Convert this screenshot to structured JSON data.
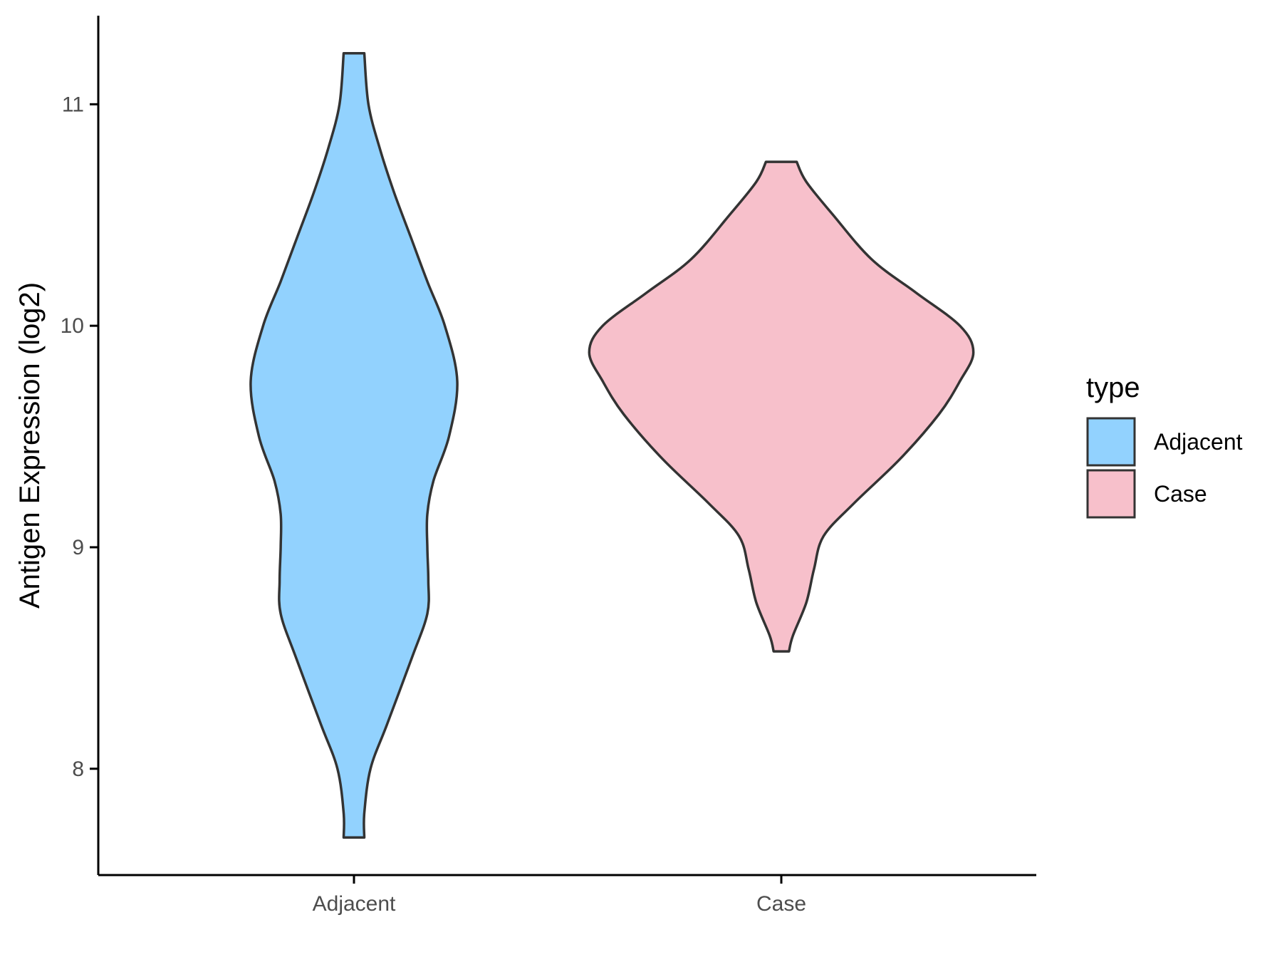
{
  "chart_data": {
    "type": "violin",
    "ylabel": "Antigen Expression (log2)",
    "xlabel": "",
    "categories": [
      "Adjacent",
      "Case"
    ],
    "ylim": [
      7.52,
      11.4
    ],
    "yticks": [
      8,
      9,
      10,
      11
    ],
    "ytick_labels": [
      "8",
      "9",
      "10",
      "11"
    ],
    "grid": false,
    "legend": {
      "title": "type",
      "position": "right",
      "entries": [
        {
          "label": "Adjacent",
          "color": "#92d2fe"
        },
        {
          "label": "Case",
          "color": "#f7c0cb"
        }
      ]
    },
    "series": [
      {
        "name": "Adjacent",
        "color": "#92d2fe",
        "y_min": 7.69,
        "y_max": 11.23,
        "profile": [
          [
            7.69,
            0.1
          ],
          [
            7.8,
            0.1
          ],
          [
            8.0,
            0.16
          ],
          [
            8.2,
            0.32
          ],
          [
            8.5,
            0.56
          ],
          [
            8.7,
            0.71
          ],
          [
            8.85,
            0.72
          ],
          [
            9.0,
            0.71
          ],
          [
            9.15,
            0.71
          ],
          [
            9.3,
            0.77
          ],
          [
            9.5,
            0.92
          ],
          [
            9.75,
            1.0
          ],
          [
            10.0,
            0.88
          ],
          [
            10.2,
            0.71
          ],
          [
            10.4,
            0.55
          ],
          [
            10.6,
            0.39
          ],
          [
            10.8,
            0.25
          ],
          [
            11.0,
            0.14
          ],
          [
            11.23,
            0.1
          ]
        ]
      },
      {
        "name": "Case",
        "color": "#f7c0cb",
        "y_min": 8.53,
        "y_max": 10.74,
        "profile": [
          [
            8.53,
            0.04
          ],
          [
            8.6,
            0.06
          ],
          [
            8.75,
            0.13
          ],
          [
            8.9,
            0.17
          ],
          [
            9.05,
            0.22
          ],
          [
            9.2,
            0.38
          ],
          [
            9.4,
            0.62
          ],
          [
            9.6,
            0.82
          ],
          [
            9.75,
            0.93
          ],
          [
            9.88,
            1.0
          ],
          [
            10.0,
            0.93
          ],
          [
            10.15,
            0.7
          ],
          [
            10.3,
            0.47
          ],
          [
            10.5,
            0.27
          ],
          [
            10.65,
            0.13
          ],
          [
            10.74,
            0.08
          ]
        ]
      }
    ]
  }
}
